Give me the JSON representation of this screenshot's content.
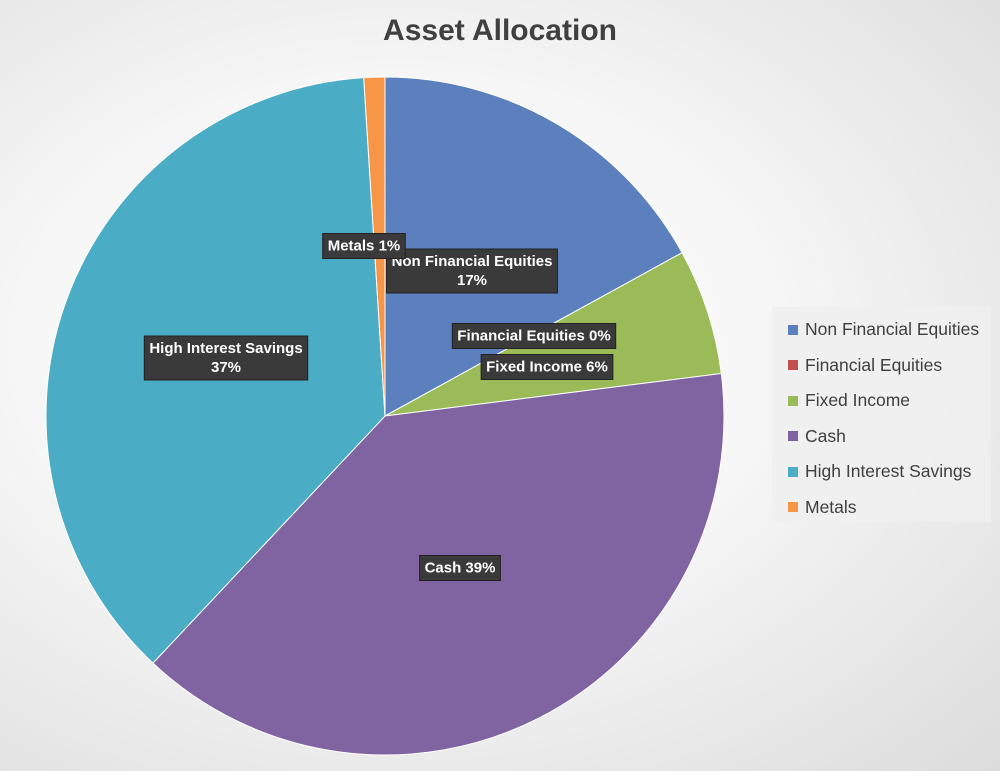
{
  "chart_data": {
    "type": "pie",
    "title": "Asset Allocation",
    "slices": [
      {
        "name": "Non Financial Equities",
        "value": 17,
        "label": "Non Financial Equities\n17%",
        "color": "#5b80bd"
      },
      {
        "name": "Financial Equities",
        "value": 0,
        "label": "Financial Equities 0%",
        "color": "#c0504d"
      },
      {
        "name": "Fixed Income",
        "value": 6,
        "label": "Fixed Income 6%",
        "color": "#9bbb59"
      },
      {
        "name": "Cash",
        "value": 39,
        "label": "Cash 39%",
        "color": "#8064a2"
      },
      {
        "name": "High Interest Savings",
        "value": 37,
        "label": "High Interest Savings\n37%",
        "color": "#4bacc6"
      },
      {
        "name": "Metals",
        "value": 1,
        "label": "Metals 1%",
        "color": "#f79646"
      }
    ],
    "legend_position": "right"
  }
}
